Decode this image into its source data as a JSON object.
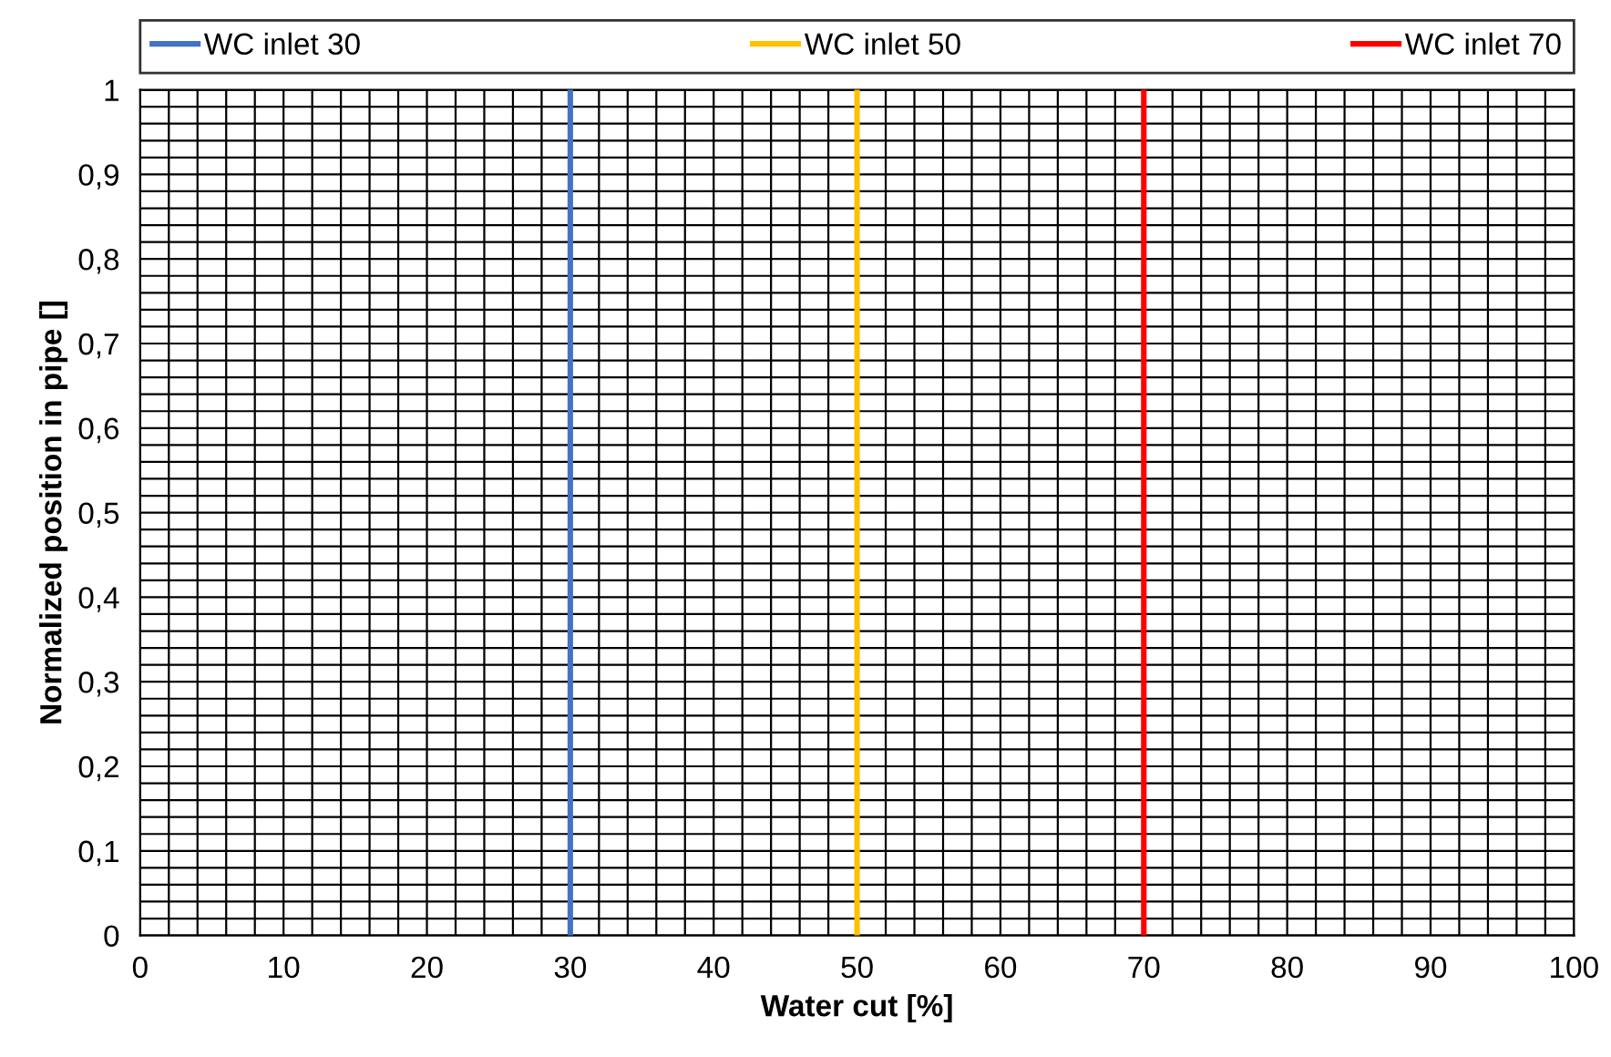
{
  "chart_data": {
    "type": "line",
    "xlabel": "Water cut [%]",
    "ylabel": "Normalized position in pipe []",
    "series": [
      {
        "name": "WC inlet 30",
        "color": "#4472c4",
        "x": [
          30,
          30
        ],
        "values": [
          0,
          1
        ]
      },
      {
        "name": "WC inlet 50",
        "color": "#ffc000",
        "x": [
          50,
          50
        ],
        "values": [
          0,
          1
        ]
      },
      {
        "name": "WC inlet 70",
        "color": "#ff0000",
        "x": [
          70,
          70
        ],
        "values": [
          0,
          1
        ]
      }
    ],
    "xlim": [
      0,
      100
    ],
    "xticks": [
      0,
      {
        "value": 2,
        "label": null
      },
      {
        "value": 4,
        "label": null
      },
      {
        "value": 6,
        "label": null
      },
      {
        "value": 8,
        "label": null
      },
      10,
      {
        "value": 12,
        "label": null
      },
      {
        "value": 14,
        "label": null
      },
      {
        "value": 16,
        "label": null
      },
      {
        "value": 18,
        "label": null
      },
      20,
      {
        "value": 22,
        "label": null
      },
      {
        "value": 24,
        "label": null
      },
      {
        "value": 26,
        "label": null
      },
      {
        "value": 28,
        "label": null
      },
      30,
      {
        "value": 32,
        "label": null
      },
      {
        "value": 34,
        "label": null
      },
      {
        "value": 36,
        "label": null
      },
      {
        "value": 38,
        "label": null
      },
      40,
      {
        "value": 42,
        "label": null
      },
      {
        "value": 44,
        "label": null
      },
      {
        "value": 46,
        "label": null
      },
      {
        "value": 48,
        "label": null
      },
      50,
      {
        "value": 52,
        "label": null
      },
      {
        "value": 54,
        "label": null
      },
      {
        "value": 56,
        "label": null
      },
      {
        "value": 58,
        "label": null
      },
      60,
      {
        "value": 62,
        "label": null
      },
      {
        "value": 64,
        "label": null
      },
      {
        "value": 66,
        "label": null
      },
      {
        "value": 68,
        "label": null
      },
      70,
      {
        "value": 72,
        "label": null
      },
      {
        "value": 74,
        "label": null
      },
      {
        "value": 76,
        "label": null
      },
      {
        "value": 78,
        "label": null
      },
      80,
      {
        "value": 82,
        "label": null
      },
      {
        "value": 84,
        "label": null
      },
      {
        "value": 86,
        "label": null
      },
      {
        "value": 88,
        "label": null
      },
      90,
      {
        "value": 92,
        "label": null
      },
      {
        "value": 94,
        "label": null
      },
      {
        "value": 96,
        "label": null
      },
      {
        "value": 98,
        "label": null
      },
      100
    ],
    "ylim": [
      0,
      1
    ],
    "yticks": [
      {
        "value": 0,
        "label": "0"
      },
      {
        "value": 0.02,
        "label": null
      },
      {
        "value": 0.04,
        "label": null
      },
      {
        "value": 0.06,
        "label": null
      },
      {
        "value": 0.08,
        "label": null
      },
      {
        "value": 0.1,
        "label": "0,1"
      },
      {
        "value": 0.12,
        "label": null
      },
      {
        "value": 0.14,
        "label": null
      },
      {
        "value": 0.16,
        "label": null
      },
      {
        "value": 0.18,
        "label": null
      },
      {
        "value": 0.2,
        "label": "0,2"
      },
      {
        "value": 0.22,
        "label": null
      },
      {
        "value": 0.24,
        "label": null
      },
      {
        "value": 0.26,
        "label": null
      },
      {
        "value": 0.28,
        "label": null
      },
      {
        "value": 0.3,
        "label": "0,3"
      },
      {
        "value": 0.32,
        "label": null
      },
      {
        "value": 0.34,
        "label": null
      },
      {
        "value": 0.36,
        "label": null
      },
      {
        "value": 0.38,
        "label": null
      },
      {
        "value": 0.4,
        "label": "0,4"
      },
      {
        "value": 0.42,
        "label": null
      },
      {
        "value": 0.44,
        "label": null
      },
      {
        "value": 0.46,
        "label": null
      },
      {
        "value": 0.48,
        "label": null
      },
      {
        "value": 0.5,
        "label": "0,5"
      },
      {
        "value": 0.52,
        "label": null
      },
      {
        "value": 0.54,
        "label": null
      },
      {
        "value": 0.56,
        "label": null
      },
      {
        "value": 0.58,
        "label": null
      },
      {
        "value": 0.6,
        "label": "0,6"
      },
      {
        "value": 0.62,
        "label": null
      },
      {
        "value": 0.64,
        "label": null
      },
      {
        "value": 0.66,
        "label": null
      },
      {
        "value": 0.68,
        "label": null
      },
      {
        "value": 0.7,
        "label": "0,7"
      },
      {
        "value": 0.72,
        "label": null
      },
      {
        "value": 0.74,
        "label": null
      },
      {
        "value": 0.76,
        "label": null
      },
      {
        "value": 0.78,
        "label": null
      },
      {
        "value": 0.8,
        "label": "0,8"
      },
      {
        "value": 0.82,
        "label": null
      },
      {
        "value": 0.84,
        "label": null
      },
      {
        "value": 0.86,
        "label": null
      },
      {
        "value": 0.88,
        "label": null
      },
      {
        "value": 0.9,
        "label": "0,9"
      },
      {
        "value": 0.92,
        "label": null
      },
      {
        "value": 0.94,
        "label": null
      },
      {
        "value": 0.96,
        "label": null
      },
      {
        "value": 0.98,
        "label": null
      },
      {
        "value": 1,
        "label": "1"
      }
    ],
    "grid": true,
    "legend": "top",
    "marker": "none",
    "line_style": "solid"
  }
}
